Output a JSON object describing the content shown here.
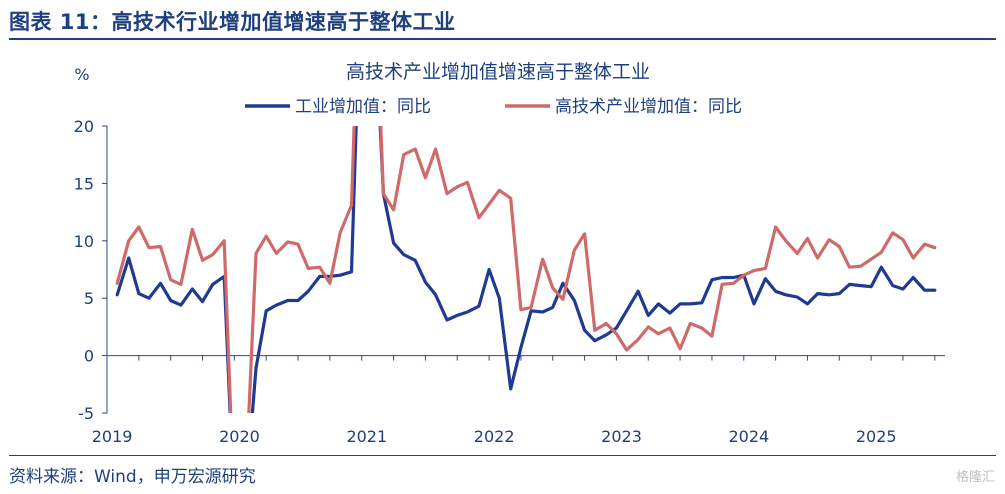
{
  "figure": {
    "title": "图表 11：高技术行业增加值增速高于整体工业",
    "source": "资料来源：Wind，申万宏源研究",
    "watermark": "格隆汇"
  },
  "colors": {
    "industrial": "#1f3a93",
    "hightech": "#d06a6a",
    "text": "#1f3f7f",
    "axis": "#2b4a8a"
  },
  "chart_data": {
    "type": "line",
    "title": "高技术产业增加值增速高于整体工业",
    "ylabel": "%",
    "xlabel": "",
    "ylim": [
      -5,
      20
    ],
    "yticks": [
      -5,
      0,
      5,
      10,
      15,
      20
    ],
    "xlim": [
      2019.0,
      2025.58
    ],
    "xticks": [
      2019,
      2020,
      2021,
      2022,
      2023,
      2024,
      2025
    ],
    "xtick_labels": [
      "2019",
      "2020",
      "2021",
      "2022",
      "2023",
      "2024",
      "2025"
    ],
    "legend_position": "top",
    "grid": false,
    "series": [
      {
        "name": "工业增加值：同比",
        "color": "#1f3a93",
        "x": [
          2019.08,
          2019.17,
          2019.25,
          2019.33,
          2019.42,
          2019.5,
          2019.58,
          2019.67,
          2019.75,
          2019.83,
          2019.92,
          2020.0,
          2020.08,
          2020.17,
          2020.25,
          2020.33,
          2020.42,
          2020.5,
          2020.58,
          2020.67,
          2020.75,
          2020.83,
          2020.92,
          2021.0,
          2021.08,
          2021.17,
          2021.25,
          2021.33,
          2021.42,
          2021.5,
          2021.58,
          2021.67,
          2021.75,
          2021.83,
          2021.92,
          2022.0,
          2022.08,
          2022.17,
          2022.25,
          2022.33,
          2022.42,
          2022.5,
          2022.58,
          2022.67,
          2022.75,
          2022.83,
          2022.92,
          2023.0,
          2023.08,
          2023.17,
          2023.25,
          2023.33,
          2023.42,
          2023.5,
          2023.58,
          2023.67,
          2023.75,
          2023.83,
          2023.92,
          2024.0,
          2024.08,
          2024.17,
          2024.25,
          2024.33,
          2024.42,
          2024.5,
          2024.58,
          2024.67,
          2024.75,
          2024.83,
          2024.92,
          2025.0,
          2025.08,
          2025.17,
          2025.25,
          2025.33,
          2025.42,
          2025.5
        ],
        "y": [
          5.3,
          8.5,
          5.4,
          5.0,
          6.3,
          4.8,
          4.4,
          5.8,
          4.7,
          6.2,
          6.9,
          -13.5,
          -13.5,
          -1.1,
          3.9,
          4.4,
          4.8,
          4.8,
          5.6,
          6.9,
          6.9,
          7.0,
          7.3,
          35.1,
          35.1,
          14.1,
          9.8,
          8.8,
          8.3,
          6.4,
          5.3,
          3.1,
          3.5,
          3.8,
          4.3,
          7.5,
          5.0,
          -2.9,
          0.7,
          3.9,
          3.8,
          4.2,
          6.3,
          4.8,
          2.2,
          1.3,
          1.8,
          2.4,
          3.9,
          5.6,
          3.5,
          4.5,
          3.7,
          4.5,
          4.5,
          4.6,
          6.6,
          6.8,
          6.8,
          7.0,
          4.5,
          6.7,
          5.6,
          5.3,
          5.1,
          4.5,
          5.4,
          5.3,
          5.4,
          6.2,
          6.1,
          6.0,
          7.7,
          6.1,
          5.8,
          6.8,
          5.7,
          5.7
        ]
      },
      {
        "name": "高技术产业增加值：同比",
        "color": "#d06a6a",
        "x": [
          2019.08,
          2019.17,
          2019.25,
          2019.33,
          2019.42,
          2019.5,
          2019.58,
          2019.67,
          2019.75,
          2019.83,
          2019.92,
          2020.0,
          2020.08,
          2020.17,
          2020.25,
          2020.33,
          2020.42,
          2020.5,
          2020.58,
          2020.67,
          2020.75,
          2020.83,
          2020.92,
          2021.0,
          2021.08,
          2021.17,
          2021.25,
          2021.33,
          2021.42,
          2021.5,
          2021.58,
          2021.67,
          2021.75,
          2021.83,
          2021.92,
          2022.0,
          2022.08,
          2022.17,
          2022.25,
          2022.33,
          2022.42,
          2022.5,
          2022.58,
          2022.67,
          2022.75,
          2022.83,
          2022.92,
          2023.0,
          2023.08,
          2023.17,
          2023.25,
          2023.33,
          2023.42,
          2023.5,
          2023.58,
          2023.67,
          2023.75,
          2023.83,
          2023.92,
          2024.0,
          2024.08,
          2024.17,
          2024.25,
          2024.33,
          2024.42,
          2024.5,
          2024.58,
          2024.67,
          2024.75,
          2024.83,
          2024.92,
          2025.0,
          2025.08,
          2025.17,
          2025.25,
          2025.33,
          2025.42,
          2025.5
        ],
        "y": [
          6.3,
          10.0,
          11.2,
          9.4,
          9.5,
          6.6,
          6.2,
          11.0,
          8.3,
          8.8,
          10.0,
          -13.5,
          -13.5,
          8.9,
          10.4,
          8.9,
          9.9,
          9.7,
          7.6,
          7.7,
          6.3,
          10.7,
          13.1,
          40.0,
          40.0,
          14.1,
          12.7,
          17.5,
          18.0,
          15.5,
          18.0,
          14.1,
          14.7,
          15.1,
          12.0,
          13.2,
          14.4,
          13.7,
          4.0,
          4.2,
          8.4,
          5.9,
          4.9,
          9.2,
          10.6,
          2.2,
          2.8,
          1.9,
          0.5,
          1.4,
          2.5,
          1.9,
          2.4,
          0.6,
          2.8,
          2.4,
          1.7,
          6.2,
          6.3,
          7.0,
          7.4,
          7.6,
          11.2,
          10.0,
          8.9,
          10.2,
          8.5,
          10.1,
          9.5,
          7.7,
          7.8,
          8.4,
          9.0,
          10.7,
          10.1,
          8.5,
          9.7,
          9.4
        ]
      }
    ]
  }
}
